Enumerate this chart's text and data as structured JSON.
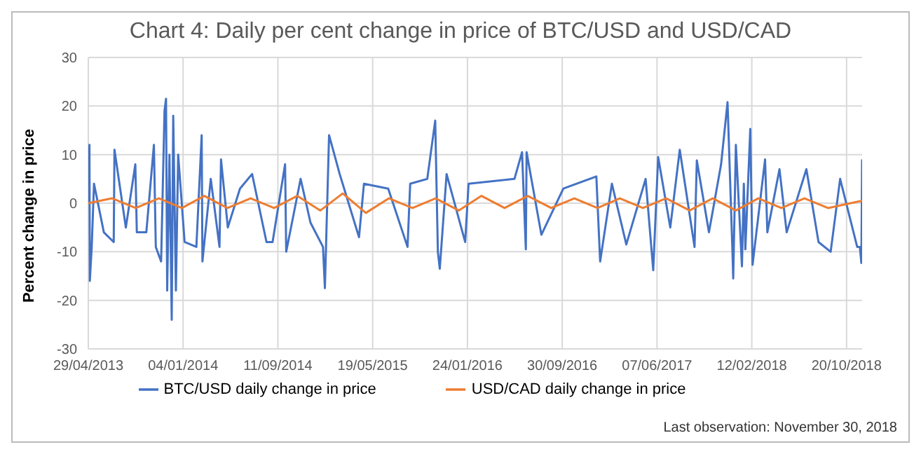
{
  "chart_data": {
    "type": "line",
    "title": "Chart 4: Daily per cent change in price of BTC/USD and USD/CAD",
    "ylabel": "Percent change in price",
    "xlim": [
      "2013-04-29",
      "2018-11-30"
    ],
    "xticks": [
      {
        "value": "2013-04-29",
        "label": "29/04/2013"
      },
      {
        "value": "2014-01-04",
        "label": "04/01/2014"
      },
      {
        "value": "2014-09-11",
        "label": "11/09/2014"
      },
      {
        "value": "2015-05-19",
        "label": "19/05/2015"
      },
      {
        "value": "2016-01-24",
        "label": "24/01/2016"
      },
      {
        "value": "2016-09-30",
        "label": "30/09/2016"
      },
      {
        "value": "2017-06-07",
        "label": "07/06/2017"
      },
      {
        "value": "2018-02-12",
        "label": "12/02/2018"
      },
      {
        "value": "2018-10-20",
        "label": "20/10/2018"
      }
    ],
    "ylim": [
      -30,
      30
    ],
    "yticks": [
      -30,
      -20,
      -10,
      0,
      10,
      20,
      30
    ],
    "grid": true,
    "legend": "bottom",
    "marker": "none",
    "line_style": "solid",
    "annotations": [
      "Last observation: November 30, 2018"
    ],
    "series": [
      {
        "name": "BTC/USD daily change in price",
        "color": "#4472c4",
        "x": [
          "2013-04-29",
          "2013-05-02",
          "2013-05-03",
          "2013-05-08",
          "2013-05-14",
          "2013-06-09",
          "2013-07-05",
          "2013-07-07",
          "2013-08-06",
          "2013-08-31",
          "2013-09-04",
          "2013-09-29",
          "2013-10-19",
          "2013-10-24",
          "2013-11-07",
          "2013-11-16",
          "2013-11-20",
          "2013-11-23",
          "2013-11-29",
          "2013-12-05",
          "2013-12-09",
          "2013-12-16",
          "2013-12-22",
          "2014-01-08",
          "2014-02-08",
          "2014-02-22",
          "2014-02-24",
          "2014-03-18",
          "2014-04-10",
          "2014-04-14",
          "2014-05-02",
          "2014-06-03",
          "2014-07-05",
          "2014-08-12",
          "2014-08-28",
          "2014-09-30",
          "2014-10-03",
          "2014-11-10",
          "2014-12-06",
          "2015-01-08",
          "2015-01-13",
          "2015-01-24",
          "2015-02-21",
          "2015-04-13",
          "2015-04-26",
          "2015-06-29",
          "2015-08-19",
          "2015-08-26",
          "2015-10-10",
          "2015-10-31",
          "2015-11-07",
          "2015-11-12",
          "2015-11-30",
          "2016-01-18",
          "2016-01-27",
          "2016-05-27",
          "2016-06-16",
          "2016-06-26",
          "2016-06-28",
          "2016-08-06",
          "2016-10-03",
          "2016-12-29",
          "2017-01-08",
          "2017-02-08",
          "2017-03-18",
          "2017-05-08",
          "2017-05-28",
          "2017-06-10",
          "2017-07-12",
          "2017-08-06",
          "2017-09-14",
          "2017-09-20",
          "2017-10-22",
          "2017-11-23",
          "2017-12-10",
          "2017-12-23",
          "2017-12-25",
          "2018-01-01",
          "2018-01-17",
          "2018-01-22",
          "2018-01-26",
          "2018-02-08",
          "2018-02-14",
          "2018-03-19",
          "2018-03-25",
          "2018-04-26",
          "2018-05-15",
          "2018-07-06",
          "2018-08-07",
          "2018-09-08",
          "2018-10-03",
          "2018-11-17",
          "2018-11-24",
          "2018-11-28",
          "2018-11-30"
        ],
        "values": [
          0,
          12,
          -16,
          -9,
          4,
          -6,
          -8,
          11,
          -5,
          8,
          -6,
          -6,
          12,
          -9,
          -12,
          19,
          21.5,
          -18,
          10,
          -24,
          18,
          -18,
          10,
          -8,
          -9,
          14,
          -12,
          5,
          -9,
          9,
          -5,
          3,
          6,
          -8,
          -8,
          8,
          -10,
          5,
          -4,
          -9,
          -17.5,
          14,
          6,
          -7,
          4,
          3,
          -9,
          4,
          5,
          17,
          -10,
          -13.5,
          6,
          -8,
          4,
          5,
          10.5,
          -9.5,
          10.5,
          -6.5,
          3,
          5.5,
          -12,
          4,
          -8.5,
          5,
          -13.8,
          9.5,
          -5,
          11,
          -9,
          8.8,
          -6,
          8,
          20.8,
          -10,
          -15.5,
          12,
          -13,
          4,
          -9.5,
          15.3,
          -12.7,
          9,
          -6,
          7,
          -6,
          7,
          -8,
          -10,
          5,
          -9,
          -9,
          -12.3,
          9
        ]
      },
      {
        "name": "USD/CAD daily change in price",
        "color": "#ed7d31",
        "x": [
          "2013-04-29",
          "2013-07-01",
          "2013-09-01",
          "2013-11-01",
          "2014-01-01",
          "2014-03-01",
          "2014-05-01",
          "2014-07-01",
          "2014-09-01",
          "2014-11-01",
          "2015-01-01",
          "2015-03-01",
          "2015-05-01",
          "2015-07-01",
          "2015-09-01",
          "2015-11-01",
          "2016-01-01",
          "2016-03-01",
          "2016-05-01",
          "2016-07-01",
          "2016-09-01",
          "2016-11-01",
          "2017-01-01",
          "2017-03-01",
          "2017-05-01",
          "2017-07-01",
          "2017-09-01",
          "2017-11-01",
          "2018-01-01",
          "2018-03-01",
          "2018-05-01",
          "2018-07-01",
          "2018-09-01",
          "2018-11-30"
        ],
        "values": [
          0,
          1,
          -1,
          1,
          -1,
          1.5,
          -1,
          1,
          -1,
          1.5,
          -1.5,
          2,
          -2,
          1,
          -1,
          1,
          -1.5,
          1.5,
          -1,
          1.5,
          -1,
          1,
          -1,
          1,
          -1,
          1,
          -1.5,
          1,
          -1.5,
          1,
          -1,
          1,
          -1,
          0.5
        ]
      }
    ]
  }
}
